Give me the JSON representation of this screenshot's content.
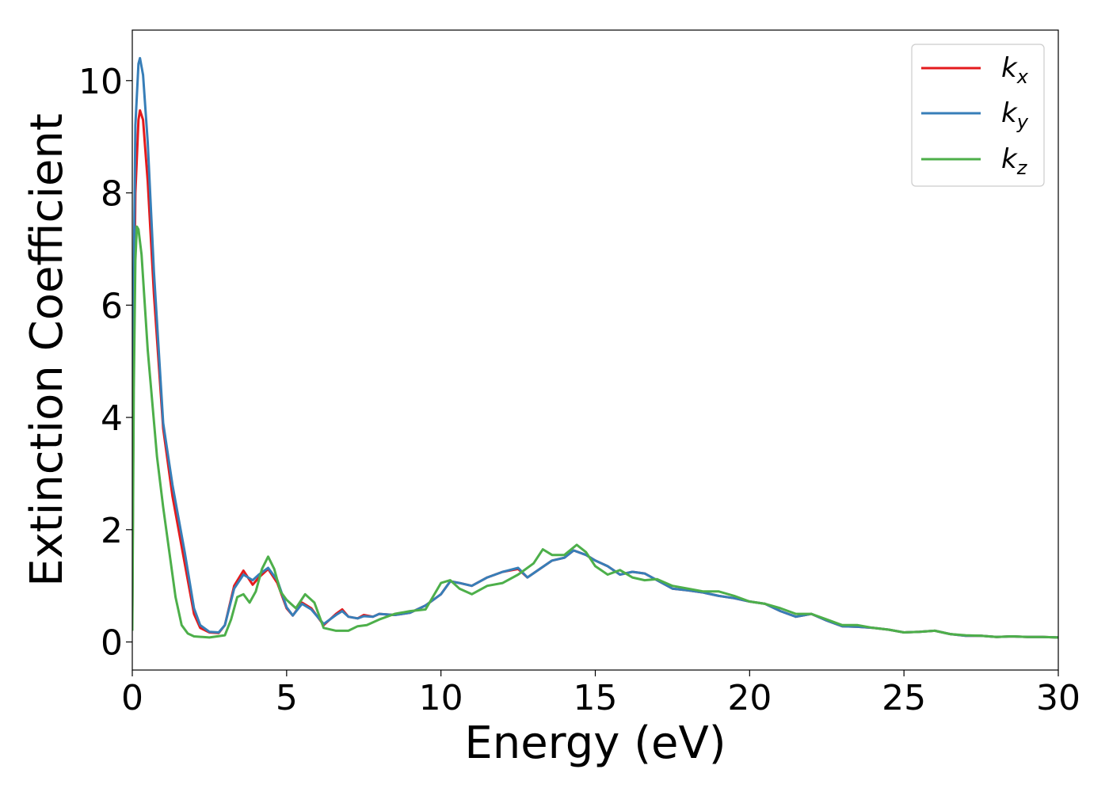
{
  "chart_data": {
    "type": "line",
    "title": "",
    "xlabel": "Energy (eV)",
    "ylabel": "Extinction Coefficient",
    "xlim": [
      0,
      30
    ],
    "ylim": [
      -0.5,
      10.9
    ],
    "xticks": [
      0,
      5,
      10,
      15,
      20,
      25,
      30
    ],
    "yticks": [
      0,
      2,
      4,
      6,
      8,
      10
    ],
    "grid": false,
    "legend_position": "top-right",
    "series": [
      {
        "name": "k",
        "subscript": "x",
        "color": "#e41a1c",
        "points": [
          [
            0,
            0.5
          ],
          [
            0.05,
            5.5
          ],
          [
            0.1,
            8.0
          ],
          [
            0.2,
            9.3
          ],
          [
            0.25,
            9.47
          ],
          [
            0.35,
            9.3
          ],
          [
            0.5,
            8.2
          ],
          [
            0.7,
            6.2
          ],
          [
            1.0,
            3.8
          ],
          [
            1.3,
            2.6
          ],
          [
            1.7,
            1.4
          ],
          [
            2.0,
            0.5
          ],
          [
            2.2,
            0.25
          ],
          [
            2.5,
            0.17
          ],
          [
            2.8,
            0.16
          ],
          [
            3.0,
            0.3
          ],
          [
            3.3,
            1.0
          ],
          [
            3.6,
            1.27
          ],
          [
            3.9,
            1.02
          ],
          [
            4.1,
            1.15
          ],
          [
            4.4,
            1.3
          ],
          [
            4.7,
            1.05
          ],
          [
            5.0,
            0.6
          ],
          [
            5.2,
            0.47
          ],
          [
            5.5,
            0.7
          ],
          [
            5.8,
            0.6
          ],
          [
            6.2,
            0.3
          ],
          [
            6.6,
            0.5
          ],
          [
            6.8,
            0.58
          ],
          [
            7.0,
            0.45
          ],
          [
            7.3,
            0.42
          ],
          [
            7.5,
            0.48
          ],
          [
            7.8,
            0.45
          ],
          [
            8.0,
            0.5
          ],
          [
            8.5,
            0.48
          ],
          [
            9.0,
            0.52
          ],
          [
            9.5,
            0.65
          ],
          [
            10.0,
            0.85
          ],
          [
            10.3,
            1.08
          ],
          [
            10.6,
            1.05
          ],
          [
            11.0,
            1.0
          ],
          [
            11.5,
            1.15
          ],
          [
            12.0,
            1.25
          ],
          [
            12.5,
            1.3
          ],
          [
            12.8,
            1.15
          ],
          [
            13.2,
            1.3
          ],
          [
            13.6,
            1.45
          ],
          [
            14.0,
            1.5
          ],
          [
            14.3,
            1.63
          ],
          [
            14.7,
            1.55
          ],
          [
            15.0,
            1.45
          ],
          [
            15.4,
            1.35
          ],
          [
            15.8,
            1.2
          ],
          [
            16.2,
            1.25
          ],
          [
            16.6,
            1.22
          ],
          [
            17.0,
            1.1
          ],
          [
            17.5,
            0.95
          ],
          [
            18.0,
            0.92
          ],
          [
            18.5,
            0.88
          ],
          [
            19.0,
            0.82
          ],
          [
            19.5,
            0.78
          ],
          [
            20.0,
            0.72
          ],
          [
            20.5,
            0.68
          ],
          [
            21.0,
            0.55
          ],
          [
            21.5,
            0.45
          ],
          [
            22.0,
            0.5
          ],
          [
            22.5,
            0.38
          ],
          [
            23.0,
            0.28
          ],
          [
            23.5,
            0.27
          ],
          [
            24.0,
            0.25
          ],
          [
            24.5,
            0.22
          ],
          [
            25.0,
            0.17
          ],
          [
            25.5,
            0.18
          ],
          [
            26.0,
            0.2
          ],
          [
            26.5,
            0.14
          ],
          [
            27.0,
            0.11
          ],
          [
            27.5,
            0.11
          ],
          [
            28.0,
            0.09
          ],
          [
            28.5,
            0.1
          ],
          [
            29.0,
            0.09
          ],
          [
            29.5,
            0.09
          ],
          [
            30.0,
            0.08
          ]
        ]
      },
      {
        "name": "k",
        "subscript": "y",
        "color": "#377eb8",
        "points": [
          [
            0,
            0.5
          ],
          [
            0.05,
            6.5
          ],
          [
            0.1,
            9.2
          ],
          [
            0.2,
            10.3
          ],
          [
            0.25,
            10.4
          ],
          [
            0.35,
            10.1
          ],
          [
            0.5,
            8.9
          ],
          [
            0.7,
            6.6
          ],
          [
            1.0,
            3.9
          ],
          [
            1.3,
            2.8
          ],
          [
            1.7,
            1.6
          ],
          [
            2.0,
            0.6
          ],
          [
            2.2,
            0.3
          ],
          [
            2.5,
            0.18
          ],
          [
            2.8,
            0.17
          ],
          [
            3.0,
            0.3
          ],
          [
            3.3,
            0.95
          ],
          [
            3.6,
            1.2
          ],
          [
            3.9,
            1.1
          ],
          [
            4.1,
            1.2
          ],
          [
            4.4,
            1.32
          ],
          [
            4.7,
            1.1
          ],
          [
            5.0,
            0.62
          ],
          [
            5.2,
            0.47
          ],
          [
            5.5,
            0.68
          ],
          [
            5.8,
            0.58
          ],
          [
            6.2,
            0.32
          ],
          [
            6.6,
            0.48
          ],
          [
            6.8,
            0.55
          ],
          [
            7.0,
            0.45
          ],
          [
            7.3,
            0.42
          ],
          [
            7.5,
            0.46
          ],
          [
            7.8,
            0.45
          ],
          [
            8.0,
            0.5
          ],
          [
            8.5,
            0.48
          ],
          [
            9.0,
            0.52
          ],
          [
            9.5,
            0.65
          ],
          [
            10.0,
            0.85
          ],
          [
            10.3,
            1.08
          ],
          [
            10.6,
            1.05
          ],
          [
            11.0,
            1.0
          ],
          [
            11.5,
            1.15
          ],
          [
            12.0,
            1.25
          ],
          [
            12.5,
            1.32
          ],
          [
            12.8,
            1.15
          ],
          [
            13.2,
            1.3
          ],
          [
            13.6,
            1.45
          ],
          [
            14.0,
            1.5
          ],
          [
            14.3,
            1.63
          ],
          [
            14.7,
            1.55
          ],
          [
            15.0,
            1.45
          ],
          [
            15.4,
            1.35
          ],
          [
            15.8,
            1.2
          ],
          [
            16.2,
            1.25
          ],
          [
            16.6,
            1.22
          ],
          [
            17.0,
            1.1
          ],
          [
            17.5,
            0.95
          ],
          [
            18.0,
            0.92
          ],
          [
            18.5,
            0.88
          ],
          [
            19.0,
            0.82
          ],
          [
            19.5,
            0.78
          ],
          [
            20.0,
            0.72
          ],
          [
            20.5,
            0.68
          ],
          [
            21.0,
            0.55
          ],
          [
            21.5,
            0.45
          ],
          [
            22.0,
            0.5
          ],
          [
            22.5,
            0.38
          ],
          [
            23.0,
            0.28
          ],
          [
            23.5,
            0.27
          ],
          [
            24.0,
            0.25
          ],
          [
            24.5,
            0.22
          ],
          [
            25.0,
            0.17
          ],
          [
            25.5,
            0.18
          ],
          [
            26.0,
            0.2
          ],
          [
            26.5,
            0.14
          ],
          [
            27.0,
            0.11
          ],
          [
            27.5,
            0.11
          ],
          [
            28.0,
            0.09
          ],
          [
            28.5,
            0.1
          ],
          [
            29.0,
            0.09
          ],
          [
            29.5,
            0.09
          ],
          [
            30.0,
            0.08
          ]
        ]
      },
      {
        "name": "k",
        "subscript": "z",
        "color": "#4daf4a",
        "points": [
          [
            0,
            0.2
          ],
          [
            0.05,
            4.5
          ],
          [
            0.1,
            6.8
          ],
          [
            0.15,
            7.4
          ],
          [
            0.2,
            7.35
          ],
          [
            0.3,
            6.9
          ],
          [
            0.5,
            5.2
          ],
          [
            0.8,
            3.3
          ],
          [
            1.0,
            2.4
          ],
          [
            1.2,
            1.6
          ],
          [
            1.4,
            0.8
          ],
          [
            1.6,
            0.3
          ],
          [
            1.8,
            0.15
          ],
          [
            2.0,
            0.1
          ],
          [
            2.5,
            0.08
          ],
          [
            3.0,
            0.12
          ],
          [
            3.2,
            0.4
          ],
          [
            3.4,
            0.8
          ],
          [
            3.6,
            0.85
          ],
          [
            3.8,
            0.7
          ],
          [
            4.0,
            0.9
          ],
          [
            4.2,
            1.3
          ],
          [
            4.4,
            1.52
          ],
          [
            4.6,
            1.3
          ],
          [
            4.8,
            0.9
          ],
          [
            5.0,
            0.75
          ],
          [
            5.3,
            0.6
          ],
          [
            5.6,
            0.85
          ],
          [
            5.9,
            0.7
          ],
          [
            6.2,
            0.25
          ],
          [
            6.6,
            0.2
          ],
          [
            7.0,
            0.2
          ],
          [
            7.3,
            0.28
          ],
          [
            7.6,
            0.3
          ],
          [
            8.0,
            0.4
          ],
          [
            8.5,
            0.5
          ],
          [
            9.0,
            0.55
          ],
          [
            9.5,
            0.58
          ],
          [
            10.0,
            1.05
          ],
          [
            10.3,
            1.1
          ],
          [
            10.6,
            0.95
          ],
          [
            11.0,
            0.85
          ],
          [
            11.5,
            1.0
          ],
          [
            12.0,
            1.05
          ],
          [
            12.5,
            1.2
          ],
          [
            13.0,
            1.4
          ],
          [
            13.3,
            1.65
          ],
          [
            13.6,
            1.55
          ],
          [
            14.0,
            1.55
          ],
          [
            14.4,
            1.73
          ],
          [
            14.7,
            1.6
          ],
          [
            15.0,
            1.35
          ],
          [
            15.4,
            1.2
          ],
          [
            15.8,
            1.28
          ],
          [
            16.2,
            1.15
          ],
          [
            16.6,
            1.1
          ],
          [
            17.0,
            1.12
          ],
          [
            17.5,
            1.0
          ],
          [
            18.0,
            0.95
          ],
          [
            18.5,
            0.9
          ],
          [
            19.0,
            0.9
          ],
          [
            19.5,
            0.82
          ],
          [
            20.0,
            0.72
          ],
          [
            20.5,
            0.68
          ],
          [
            21.0,
            0.6
          ],
          [
            21.5,
            0.5
          ],
          [
            22.0,
            0.5
          ],
          [
            22.5,
            0.4
          ],
          [
            23.0,
            0.3
          ],
          [
            23.5,
            0.3
          ],
          [
            24.0,
            0.25
          ],
          [
            24.5,
            0.22
          ],
          [
            25.0,
            0.17
          ],
          [
            25.5,
            0.18
          ],
          [
            26.0,
            0.2
          ],
          [
            26.5,
            0.14
          ],
          [
            27.0,
            0.12
          ],
          [
            27.5,
            0.11
          ],
          [
            28.0,
            0.09
          ],
          [
            28.5,
            0.1
          ],
          [
            29.0,
            0.09
          ],
          [
            29.5,
            0.09
          ],
          [
            30.0,
            0.08
          ]
        ]
      }
    ]
  }
}
